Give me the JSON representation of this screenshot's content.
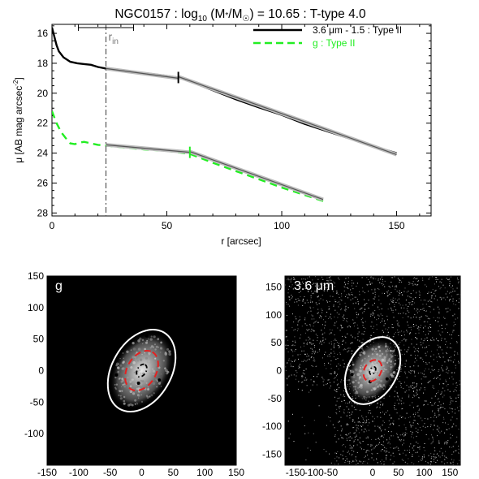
{
  "chart_data": [
    {
      "type": "line",
      "title": "NGC0157 : log",
      "title_sub": "10",
      "title_rest": " (M",
      "title_star": "*",
      "title_div": "/M",
      "title_sun": "☉",
      "title_end": ") = 10.65 : T-type 4.0",
      "xlabel": "r [arcsec]",
      "ylabel_main": "μ [AB mag arcsec",
      "ylabel_sup": "-2",
      "ylabel_end": "]",
      "xlim": [
        0,
        165
      ],
      "ylim": [
        28.2,
        15.4
      ],
      "y_inverted": true,
      "xticks": [
        0,
        50,
        100,
        150
      ],
      "yticks": [
        16,
        18,
        20,
        22,
        24,
        26,
        28
      ],
      "rin": 23.5,
      "rin_label": "r",
      "rin_sub": "in",
      "rin_errorbar": [
        11.5,
        35.5
      ],
      "break_36": 55,
      "break_g": 60,
      "legend": [
        {
          "label": "3.6 μm - 1.5 : Type II",
          "color": "#000000",
          "dash": "solid"
        },
        {
          "label": "g : Type II",
          "color": "#22ee22",
          "dash": "dashed"
        }
      ],
      "series": [
        {
          "name": "3.6 μm - 1.5 : Type II",
          "color": "#000000",
          "x": [
            0,
            1,
            2,
            3,
            5,
            8,
            11,
            14,
            17,
            20,
            23.5,
            30,
            40,
            50,
            55,
            60,
            70,
            80,
            90,
            100,
            110,
            120,
            130,
            140,
            150
          ],
          "y": [
            15.6,
            16.2,
            16.8,
            17.2,
            17.6,
            17.9,
            18.0,
            18.05,
            18.1,
            18.25,
            18.35,
            18.5,
            18.65,
            18.85,
            18.95,
            19.2,
            19.8,
            20.4,
            20.95,
            21.45,
            22.05,
            22.55,
            23.05,
            23.55,
            24.0
          ]
        },
        {
          "name": "3.6 μm fit inner",
          "color": "#555555",
          "x": [
            23.5,
            55
          ],
          "y": [
            18.35,
            19.0
          ]
        },
        {
          "name": "3.6 μm fit outer",
          "color": "#555555",
          "x": [
            55,
            150
          ],
          "y": [
            18.9,
            24.1
          ]
        },
        {
          "name": "g : Type II",
          "color": "#22ee22",
          "x": [
            0,
            1,
            2,
            4,
            6,
            8,
            10,
            12,
            14,
            17,
            20,
            23.5,
            30,
            40,
            50,
            60,
            70,
            80,
            90,
            100,
            110,
            118
          ],
          "y": [
            21.2,
            21.6,
            22.0,
            22.6,
            23.0,
            23.35,
            23.4,
            23.3,
            23.25,
            23.35,
            23.45,
            23.5,
            23.6,
            23.75,
            23.85,
            24.05,
            24.65,
            25.2,
            25.75,
            26.3,
            26.8,
            27.2
          ]
        },
        {
          "name": "g fit inner",
          "color": "#555555",
          "x": [
            23.5,
            60
          ],
          "y": [
            23.45,
            23.95
          ]
        },
        {
          "name": "g fit outer",
          "color": "#555555",
          "x": [
            60,
            118
          ],
          "y": [
            23.9,
            27.1
          ]
        }
      ]
    },
    {
      "type": "image",
      "label": "g",
      "xlim": [
        -150,
        150
      ],
      "ylim": [
        -150,
        150
      ],
      "xticks": [
        -150,
        -100,
        -50,
        0,
        50,
        100,
        150
      ],
      "xtick_labels": [
        "-150",
        "-100",
        "-50",
        "0",
        "50",
        "100",
        "150"
      ],
      "yticks": [
        150,
        100,
        50,
        0,
        -50,
        -100
      ],
      "ytick_labels": [
        "150",
        "100",
        "50",
        "0",
        "-50",
        "-100"
      ],
      "outer_ellipse": {
        "a": 70,
        "b": 47,
        "angle_deg": 60
      },
      "inner_ellipse": {
        "a": 34,
        "b": 23,
        "angle_deg": 60
      },
      "core_ellipse": {
        "a": 11,
        "b": 7,
        "angle_deg": 60
      },
      "background": "#000000"
    },
    {
      "type": "image",
      "label": "3.6 μm",
      "xlim": [
        -170,
        170
      ],
      "ylim": [
        -170,
        170
      ],
      "xticks": [
        -150,
        -100,
        -50,
        0,
        50,
        100,
        150
      ],
      "xtick_labels": [
        "-150",
        "-100-50",
        "",
        "0",
        "50",
        "100",
        "150"
      ],
      "yticks": [
        150,
        100,
        50,
        0,
        -50,
        -100,
        -150
      ],
      "ytick_labels": [
        "150",
        "100",
        "50",
        "0",
        "-50",
        "-100",
        "-150"
      ],
      "outer_ellipse": {
        "a": 70,
        "b": 47,
        "angle_deg": 60
      },
      "inner_ellipse": {
        "a": 22,
        "b": 16,
        "angle_deg": 60
      },
      "core_ellipse": {
        "a": 8,
        "b": 5,
        "angle_deg": 60
      },
      "background": "#000000"
    }
  ]
}
